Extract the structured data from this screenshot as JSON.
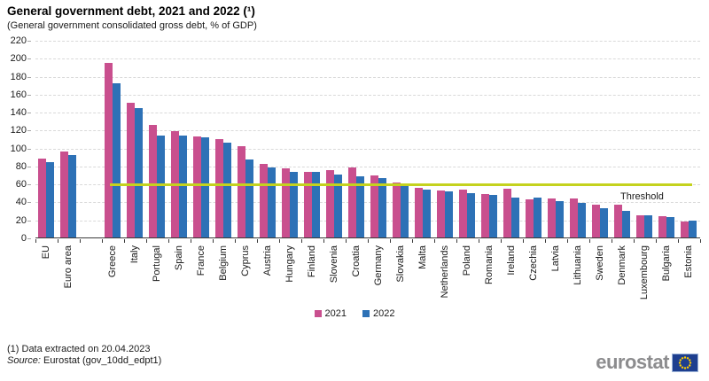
{
  "header": {
    "title": "General government debt, 2021 and 2022 (¹)",
    "subtitle": "(General government  consolidated gross debt, % of GDP)"
  },
  "legend": {
    "items": [
      {
        "label": "2021",
        "color": "#c94f8e"
      },
      {
        "label": "2022",
        "color": "#2d71b6"
      }
    ]
  },
  "threshold": {
    "label": "Threshold",
    "value": 60,
    "color": "#c4d21e"
  },
  "footnotes": {
    "note1": "(1) Data extracted on 20.04.2023",
    "source_label": "Source:",
    "source_rest": " Eurostat (gov_10dd_edpt1)"
  },
  "logo": {
    "text": "eurostat"
  },
  "chart_data": {
    "type": "bar",
    "title": "General government debt, 2021 and 2022",
    "ylabel": "% of GDP",
    "ylim": [
      0,
      220
    ],
    "ytick_step": 20,
    "grid": true,
    "legend_position": "bottom",
    "gap_after_index": 1,
    "threshold": {
      "label": "Threshold",
      "value": 60
    },
    "categories": [
      "EU",
      "Euro area",
      "Greece",
      "Italy",
      "Portugal",
      "Spain",
      "France",
      "Belgium",
      "Cyprus",
      "Austria",
      "Hungary",
      "Finland",
      "Slovenia",
      "Croatia",
      "Germany",
      "Slovakia",
      "Malta",
      "Netherlands",
      "Poland",
      "Romania",
      "Ireland",
      "Czechia",
      "Latvia",
      "Lithuania",
      "Sweden",
      "Denmark",
      "Luxembourg",
      "Bulgaria",
      "Estonia"
    ],
    "series": [
      {
        "name": "2021",
        "color": "#c94f8e",
        "values": [
          88.0,
          95.5,
          194.6,
          149.9,
          125.4,
          118.3,
          112.9,
          109.1,
          101.2,
          82.3,
          76.6,
          72.6,
          74.7,
          78.4,
          69.3,
          61.0,
          55.1,
          52.4,
          53.6,
          48.6,
          54.4,
          42.0,
          43.7,
          43.7,
          36.5,
          36.7,
          24.5,
          23.9,
          17.6
        ]
      },
      {
        "name": "2022",
        "color": "#2d71b6",
        "values": [
          84.0,
          91.6,
          171.3,
          144.4,
          113.9,
          113.2,
          111.6,
          105.1,
          86.5,
          78.4,
          73.3,
          73.0,
          69.9,
          68.4,
          66.3,
          57.8,
          53.4,
          51.0,
          49.1,
          47.3,
          44.7,
          44.1,
          40.8,
          38.4,
          33.0,
          30.1,
          24.6,
          22.9,
          18.4
        ]
      }
    ]
  }
}
